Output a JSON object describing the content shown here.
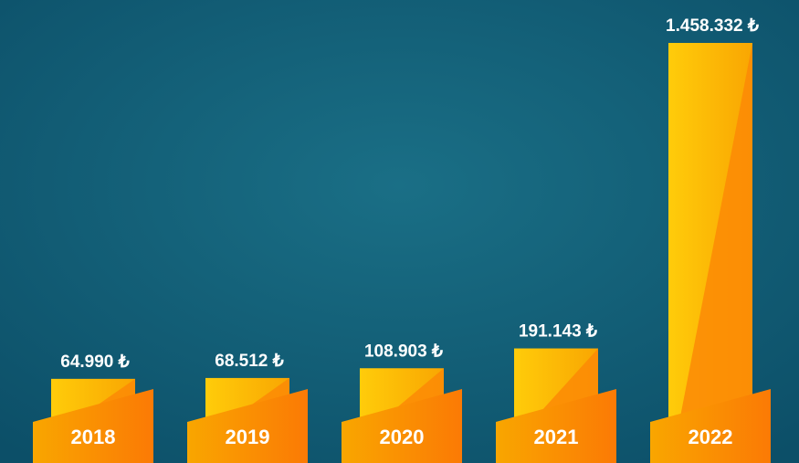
{
  "chart_data": {
    "type": "bar",
    "categories": [
      "2018",
      "2019",
      "2020",
      "2021",
      "2022"
    ],
    "values": [
      64990,
      68512,
      108903,
      191143,
      1458332
    ],
    "value_labels": [
      "64.990 ₺",
      "68.512 ₺",
      "108.903 ₺",
      "191.143 ₺",
      "1.458.332 ₺"
    ]
  }
}
